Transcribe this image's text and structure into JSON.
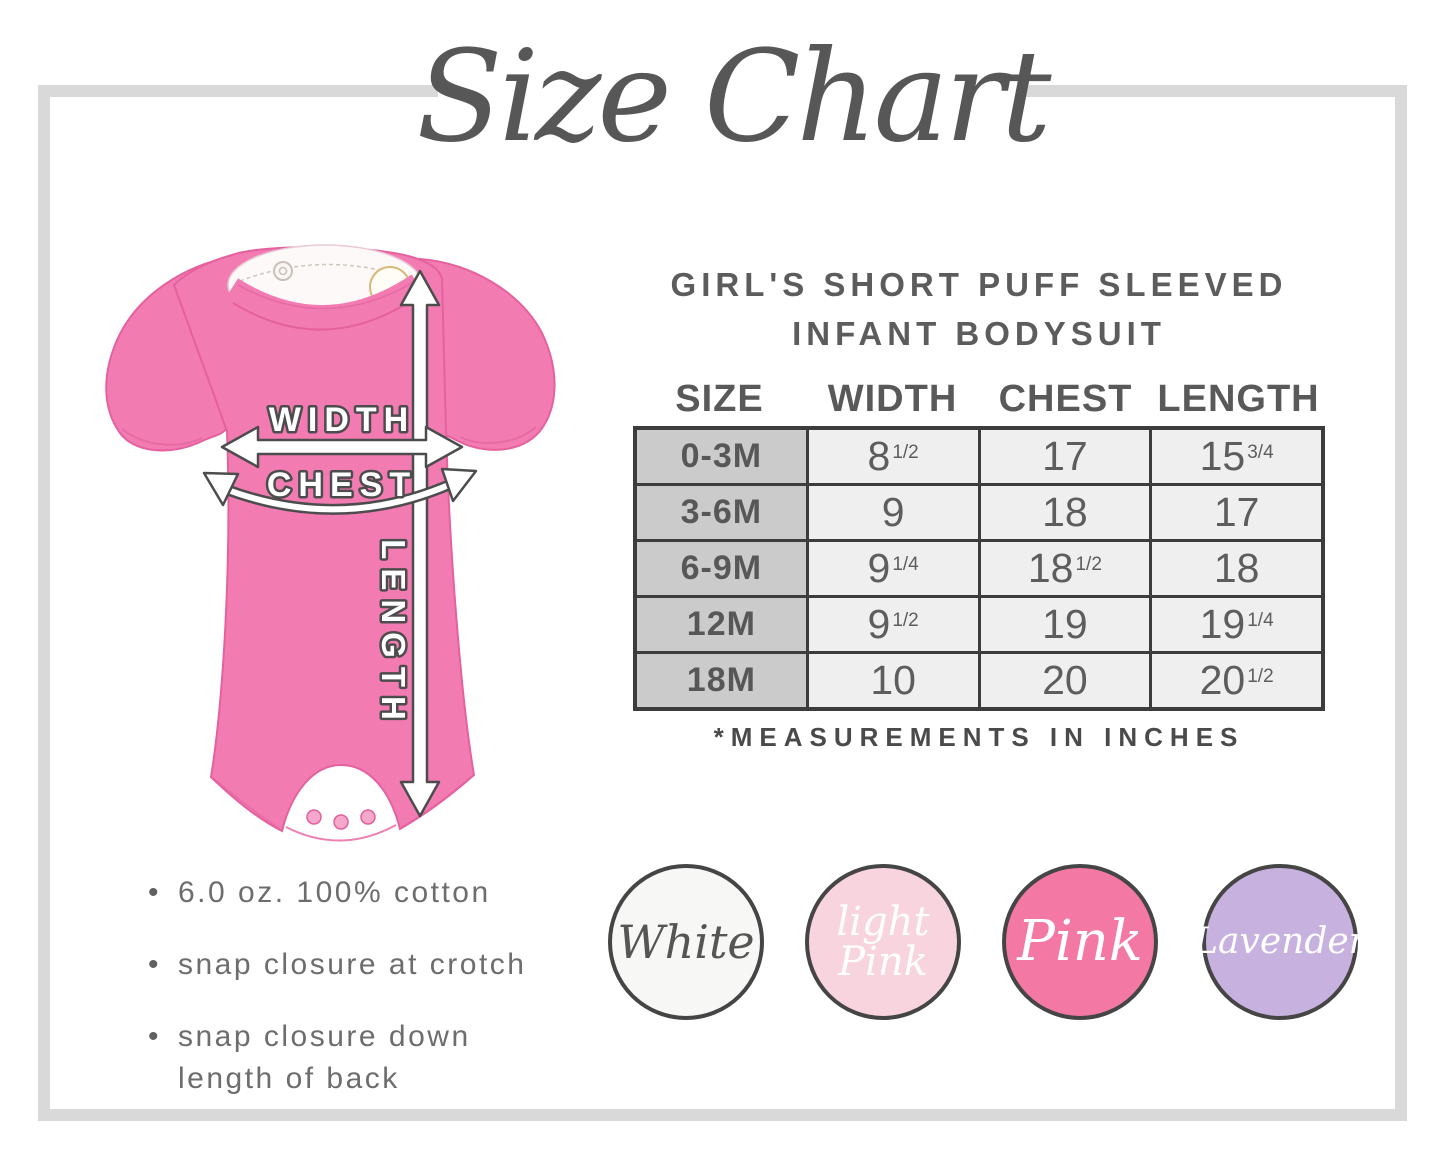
{
  "title": "Size Chart",
  "product": {
    "line1": "GIRL'S SHORT PUFF SLEEVED",
    "line2": "INFANT BODYSUIT"
  },
  "size_table": {
    "columns": [
      "SIZE",
      "WIDTH",
      "CHEST",
      "LENGTH"
    ],
    "rows": [
      {
        "size": "0-3M",
        "measurements": [
          {
            "value": "8",
            "fraction": "1/2"
          },
          {
            "value": "17",
            "fraction": ""
          },
          {
            "value": "15",
            "fraction": "3/4"
          }
        ]
      },
      {
        "size": "3-6M",
        "measurements": [
          {
            "value": "9",
            "fraction": ""
          },
          {
            "value": "18",
            "fraction": ""
          },
          {
            "value": "17",
            "fraction": ""
          }
        ]
      },
      {
        "size": "6-9M",
        "measurements": [
          {
            "value": "9",
            "fraction": "1/4"
          },
          {
            "value": "18",
            "fraction": "1/2"
          },
          {
            "value": "18",
            "fraction": ""
          }
        ]
      },
      {
        "size": "12M",
        "measurements": [
          {
            "value": "9",
            "fraction": "1/2"
          },
          {
            "value": "19",
            "fraction": ""
          },
          {
            "value": "19",
            "fraction": "1/4"
          }
        ]
      },
      {
        "size": "18M",
        "measurements": [
          {
            "value": "10",
            "fraction": ""
          },
          {
            "value": "20",
            "fraction": ""
          },
          {
            "value": "20",
            "fraction": "1/2"
          }
        ]
      }
    ],
    "footnote": "*MEASUREMENTS IN INCHES"
  },
  "diagram": {
    "width_label": "WIDTH",
    "chest_label": "CHEST",
    "length_label": "LENGTH",
    "garment_color": "#F27CB2"
  },
  "features": [
    "6.0 oz. 100% cotton",
    "snap closure at crotch",
    "snap closure down length of back"
  ],
  "swatches": [
    {
      "name": "White",
      "label_lines": [
        "White"
      ],
      "bg": "#F7F7F6",
      "text_color": "#555555",
      "font_size": 46
    },
    {
      "name": "light Pink",
      "label_lines": [
        "light",
        "Pink"
      ],
      "bg": "#F8D4DE",
      "text_color": "#FFFFFF",
      "font_size": 40
    },
    {
      "name": "Pink",
      "label_lines": [
        "Pink"
      ],
      "bg": "#F378A4",
      "text_color": "#FFFFFF",
      "font_size": 56
    },
    {
      "name": "Lavender",
      "label_lines": [
        "Lavender"
      ],
      "bg": "#C7B1DE",
      "text_color": "#FFFFFF",
      "font_size": 36
    }
  ]
}
